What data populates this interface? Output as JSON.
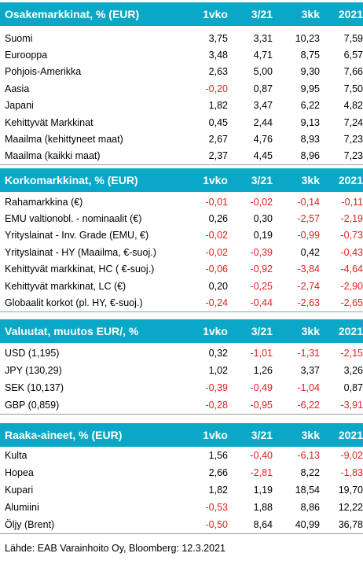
{
  "sections": [
    {
      "title": "Osakemarkkinat, % (EUR)",
      "cols": [
        "1vko",
        "3/21",
        "3kk",
        "2021"
      ],
      "rows": [
        {
          "label": "Suomi",
          "v": [
            "3,75",
            "3,31",
            "10,23",
            "7,59"
          ]
        },
        {
          "label": "Eurooppa",
          "v": [
            "3,48",
            "4,71",
            "8,75",
            "6,57"
          ]
        },
        {
          "label": "Pohjois-Amerikka",
          "v": [
            "2,63",
            "5,00",
            "9,30",
            "7,66"
          ]
        },
        {
          "label": "Aasia",
          "v": [
            "-0,20",
            "0,87",
            "9,95",
            "7,50"
          ]
        },
        {
          "label": "Japani",
          "v": [
            "1,82",
            "3,47",
            "6,22",
            "4,82"
          ]
        },
        {
          "label": "Kehittyvät Markkinat",
          "v": [
            "0,45",
            "2,44",
            "9,13",
            "7,24"
          ]
        },
        {
          "label": "Maailma (kehittyneet maat)",
          "v": [
            "2,67",
            "4,76",
            "8,93",
            "7,23"
          ]
        },
        {
          "label": "Maailma (kaikki maat)",
          "v": [
            "2,37",
            "4,45",
            "8,96",
            "7,23"
          ]
        }
      ]
    },
    {
      "title": "Korkomarkkinat, % (EUR)",
      "cols": [
        "1vko",
        "3/21",
        "3kk",
        "2021"
      ],
      "rows": [
        {
          "label": "Rahamarkkina (€)",
          "v": [
            "-0,01",
            "-0,02",
            "-0,14",
            "-0,11"
          ]
        },
        {
          "label": "EMU valtionobl. - nominaalit (€)",
          "v": [
            "0,26",
            "0,30",
            "-2,57",
            "-2,19"
          ]
        },
        {
          "label": "Yrityslainat - Inv. Grade (EMU, €)",
          "v": [
            "-0,02",
            "0,19",
            "-0,99",
            "-0,73"
          ]
        },
        {
          "label": "Yrityslainat - HY (Maailma, €-suoj.)",
          "v": [
            "-0,02",
            "-0,39",
            "0,42",
            "-0,43"
          ]
        },
        {
          "label": "Kehittyvät markkinat, HC ( €-suoj.)",
          "v": [
            "-0,06",
            "-0,92",
            "-3,84",
            "-4,64"
          ]
        },
        {
          "label": "Kehittyvät markkinat, LC (€)",
          "v": [
            "0,20",
            "-0,25",
            "-2,74",
            "-2,90"
          ]
        },
        {
          "label": "Globaalit korkot (pl. HY, €-suoj.)",
          "v": [
            "-0,24",
            "-0,44",
            "-2,63",
            "-2,65"
          ]
        }
      ]
    },
    {
      "title": "Valuutat, muutos EUR/,  %",
      "cols": [
        "1vko",
        "3/21",
        "3kk",
        "2021"
      ],
      "rows": [
        {
          "label": "USD (1,195)",
          "v": [
            "0,32",
            "-1,01",
            "-1,31",
            "-2,15"
          ]
        },
        {
          "label": "JPY (130,29)",
          "v": [
            "1,02",
            "1,26",
            "3,37",
            "3,26"
          ]
        },
        {
          "label": "SEK (10,137)",
          "v": [
            "-0,39",
            "-0,49",
            "-1,04",
            "0,87"
          ]
        },
        {
          "label": "GBP (0,859)",
          "v": [
            "-0,28",
            "-0,95",
            "-6,22",
            "-3,91"
          ]
        }
      ]
    },
    {
      "title": "Raaka-aineet, % (EUR)",
      "cols": [
        "1vko",
        "3/21",
        "3kk",
        "2021"
      ],
      "rows": [
        {
          "label": "Kulta",
          "v": [
            "1,56",
            "-0,40",
            "-6,13",
            "-9,02"
          ]
        },
        {
          "label": "Hopea",
          "v": [
            "2,66",
            "-2,81",
            "8,22",
            "-1,83"
          ]
        },
        {
          "label": "Kupari",
          "v": [
            "1,82",
            "1,19",
            "18,54",
            "19,70"
          ]
        },
        {
          "label": "Alumiini",
          "v": [
            "-0,53",
            "1,88",
            "8,86",
            "12,22"
          ]
        },
        {
          "label": "Öljy (Brent)",
          "v": [
            "-0,50",
            "8,64",
            "40,99",
            "36,78"
          ]
        }
      ]
    }
  ],
  "source": "Lähde: EAB Varainhoito Oy, Bloomberg: 12.3.2021",
  "colors": {
    "header_bg": "#0aa7c6",
    "header_text": "#ffffff",
    "negative": "#e8201f"
  }
}
